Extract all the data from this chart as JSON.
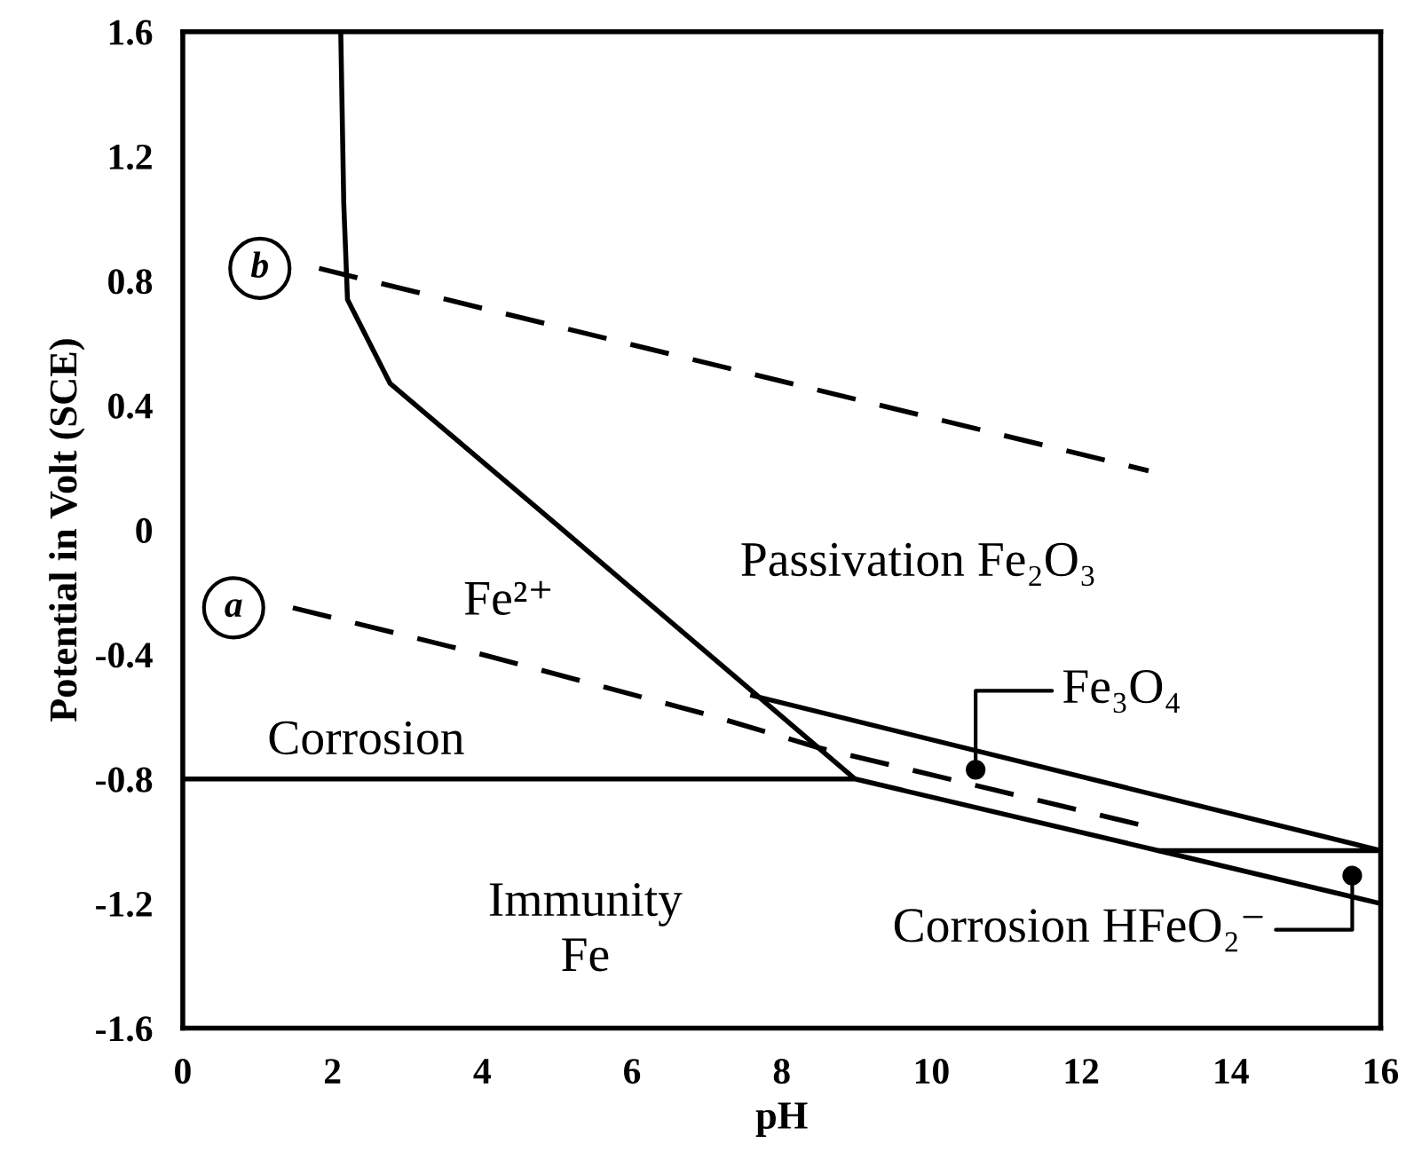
{
  "chart_data": {
    "type": "line",
    "xlabel": "pH",
    "ylabel": "Potential in Volt (SCE)",
    "xlim": [
      0,
      16
    ],
    "xticks": [
      0,
      2,
      4,
      6,
      8,
      10,
      12,
      14,
      16
    ],
    "ylim": [
      -1.6,
      1.6
    ],
    "yticks": [
      {
        "value": 1.6,
        "label": "1.6"
      },
      {
        "value": 1.2,
        "label": "1.2"
      },
      {
        "value": 0.8,
        "label": "0.8"
      },
      {
        "value": 0.4,
        "label": "0.4"
      },
      0,
      {
        "value": -0.4,
        "label": "-0.4"
      },
      {
        "value": -0.8,
        "label": "-0.8"
      },
      {
        "value": -1.2,
        "label": "-1.2"
      },
      {
        "value": -1.6,
        "label": "-1.6"
      }
    ],
    "grid": false,
    "legend": false,
    "marker": "none",
    "series": [
      {
        "color": "#000000",
        "line_style": "solid",
        "x": [
          2.11,
          2.15,
          2.2,
          2.77,
          4.98,
          8.98
        ],
        "values": [
          1.6,
          1.05,
          0.74,
          0.47,
          0.02,
          -0.8
        ]
      },
      {
        "color": "#000000",
        "line_style": "solid",
        "x": [
          0,
          8.98,
          13.03,
          16
        ],
        "values": [
          -0.8,
          -0.8,
          -1.03,
          -1.2
        ]
      },
      {
        "color": "#000000",
        "line_style": "solid",
        "x": [
          7.58,
          16,
          13.03
        ],
        "values": [
          -0.53,
          -1.03,
          -1.03
        ]
      },
      {
        "name": "b",
        "color": "#000000",
        "line_style": "dashed",
        "x": [
          1.82,
          12.9
        ],
        "values": [
          0.84,
          0.19
        ]
      },
      {
        "name": "a",
        "color": "#000000",
        "line_style": "dashed",
        "x": [
          1.47,
          4.0,
          7.04,
          8.5,
          12.84
        ],
        "values": [
          -0.25,
          -0.4,
          -0.595,
          -0.7,
          -0.95
        ]
      }
    ],
    "annotations": [
      "Fe²⁺",
      "Passivation Fe₂O₃",
      "Corrosion",
      "Immunity\nFe",
      {
        "text": "Fe₃O₄",
        "x": 10.59,
        "y": -0.77
      },
      {
        "text": "Corrosion HFeO₂⁻",
        "x": 15.62,
        "y": -1.11
      }
    ]
  }
}
